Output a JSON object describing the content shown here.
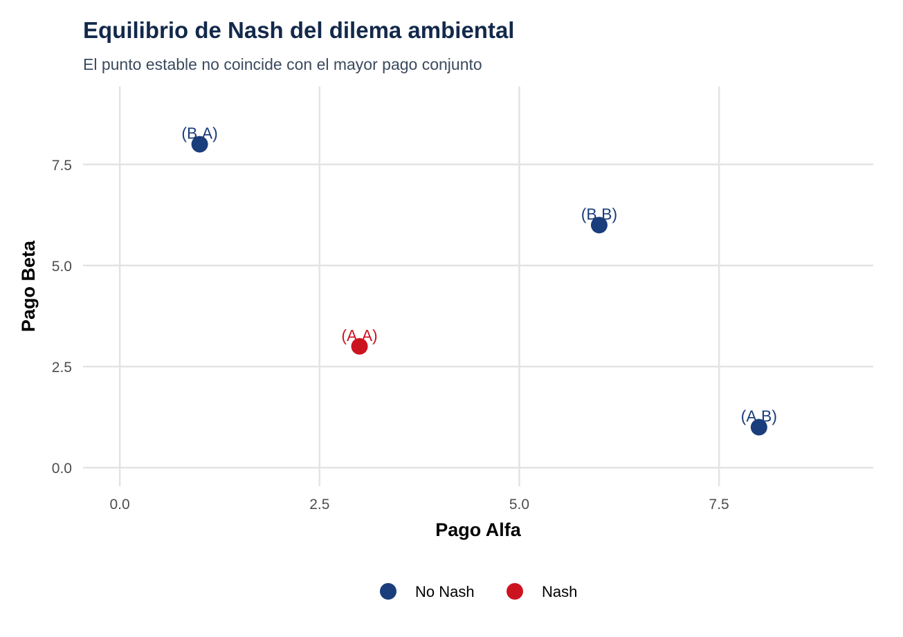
{
  "chart_data": {
    "type": "scatter",
    "title": "Equilibrio de Nash del dilema ambiental",
    "subtitle": "El punto estable no coincide con el mayor pago conjunto",
    "xlabel": "Pago Alfa",
    "ylabel": "Pago Beta",
    "xlim": [
      -0.46,
      9.43
    ],
    "ylim": [
      -0.46,
      9.43
    ],
    "xticks": [
      0,
      2.5,
      5,
      7.5
    ],
    "xtick_labels": [
      "0.0",
      "2.5",
      "5.0",
      "7.5"
    ],
    "yticks": [
      0,
      2.5,
      5,
      7.5
    ],
    "ytick_labels": [
      "0.0",
      "2.5",
      "5.0",
      "7.5"
    ],
    "grid": true,
    "legend_position": "bottom",
    "legend": [
      {
        "label": "No Nash",
        "color": "#1a3d7c"
      },
      {
        "label": "Nash",
        "color": "#cc1421"
      }
    ],
    "points": [
      {
        "label": "(A,A)",
        "x": 3,
        "y": 3,
        "group": "Nash"
      },
      {
        "label": "(A,B)",
        "x": 8,
        "y": 1,
        "group": "No Nash"
      },
      {
        "label": "(B,A)",
        "x": 1,
        "y": 8,
        "group": "No Nash"
      },
      {
        "label": "(B,B)",
        "x": 6,
        "y": 6,
        "group": "No Nash"
      }
    ]
  }
}
